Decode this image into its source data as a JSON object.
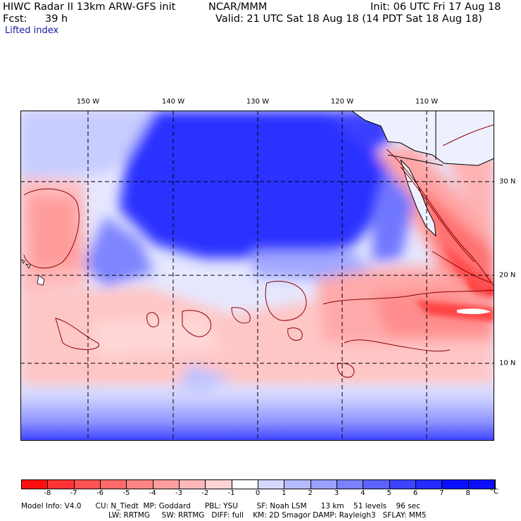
{
  "header": {
    "title": "HIWC Radar II 13km ARW-GFS init",
    "center": "NCAR/MMM",
    "init": "Init: 06 UTC Fri 17 Aug 18",
    "fcst_label": "Fcst:",
    "fcst_value": "39 h",
    "valid": "Valid: 21 UTC Sat 18 Aug 18 (14 PDT Sat 18 Aug 18)",
    "field": "Lifted index"
  },
  "map": {
    "lon_labels": [
      "150 W",
      "140 W",
      "130 W",
      "120 W",
      "110 W"
    ],
    "lat_labels": [
      "30 N",
      "20 N",
      "10 N"
    ]
  },
  "legend": {
    "ticks": [
      "-8",
      "-7",
      "-6",
      "-5",
      "-4",
      "-3",
      "-2",
      "-1",
      "0",
      "1",
      "2",
      "3",
      "4",
      "5",
      "6",
      "7",
      "8"
    ],
    "unit": "°C",
    "colors": [
      "#ff1010",
      "#ff3535",
      "#ff5252",
      "#ff6a6a",
      "#ff8585",
      "#ff9f9f",
      "#ffb9b9",
      "#ffd3d3",
      "#ffffff",
      "#d6d9ff",
      "#b6bbff",
      "#9aa0ff",
      "#7b82ff",
      "#5c63ff",
      "#3d44ff",
      "#242bff",
      "#0a10ff"
    ]
  },
  "footer": {
    "line1": "Model Info: V4.0      CU: N_Tiedt  MP: Goddard      PBL: YSU        SF: Noah LSM      13 km    51 levels    96 sec",
    "line2": "LW: RRTMG     SW: RRTMG   DIFF: full    KM: 2D Smagor DAMP: Rayleigh3   SFLAY: MM5"
  }
}
